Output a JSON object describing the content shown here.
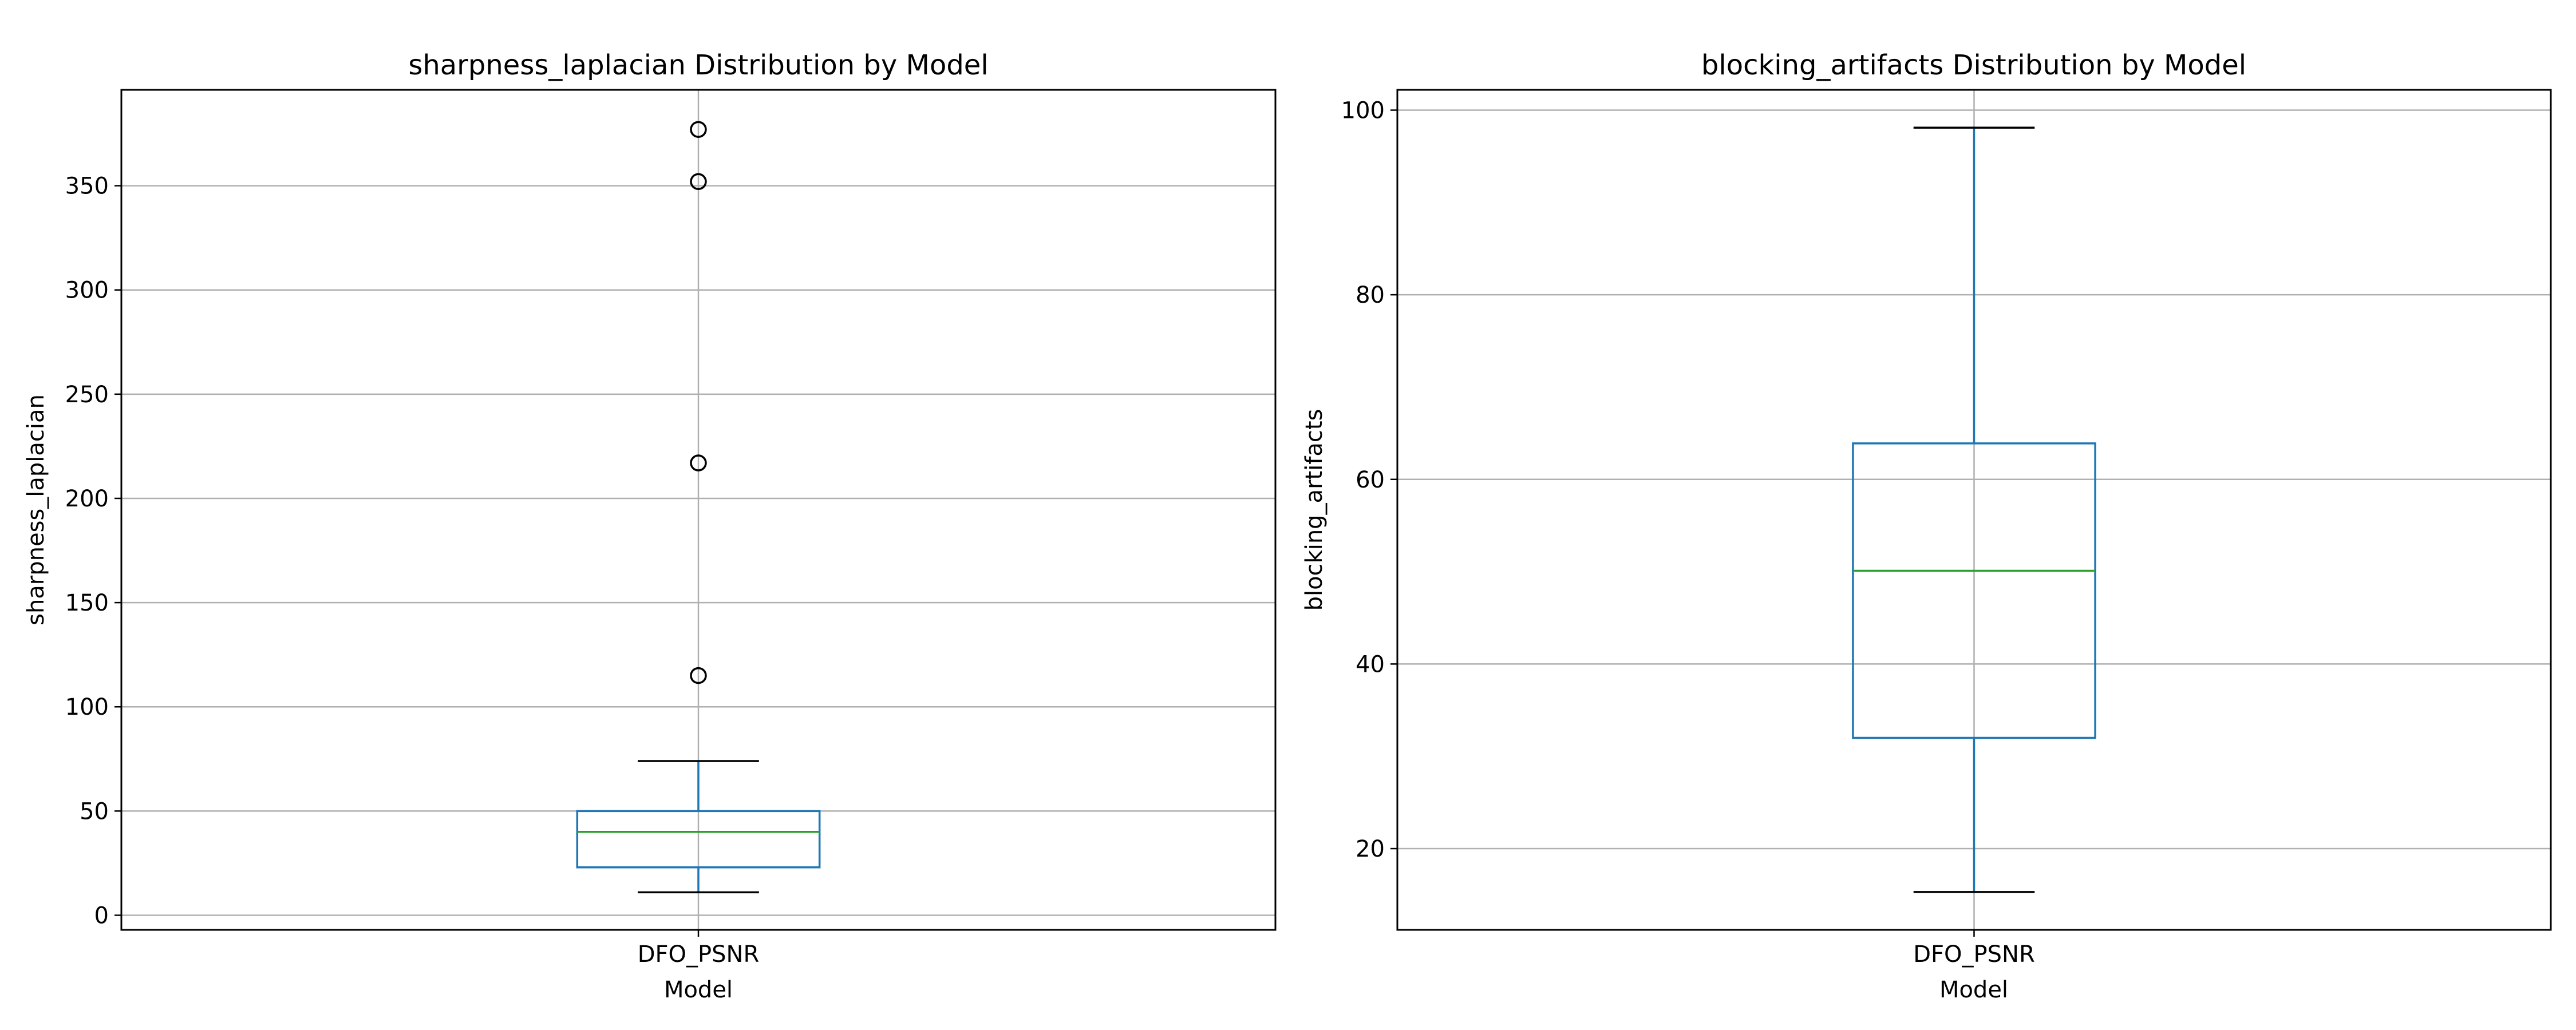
{
  "chart_data": [
    {
      "type": "box",
      "title": "sharpness_laplacian Distribution by Model",
      "xlabel": "Model",
      "ylabel": "sharpness_laplacian",
      "categories": [
        "DFO_PSNR"
      ],
      "ylim": [
        -7,
        396
      ],
      "yticks": [
        0,
        50,
        100,
        150,
        200,
        250,
        300,
        350
      ],
      "grid": true,
      "boxes": [
        {
          "category": "DFO_PSNR",
          "whisker_low": 11,
          "q1": 23,
          "median": 40,
          "q3": 50,
          "whisker_high": 74,
          "outliers": [
            115,
            217,
            352,
            377
          ]
        }
      ]
    },
    {
      "type": "box",
      "title": "blocking_artifacts Distribution by Model",
      "xlabel": "Model",
      "ylabel": "blocking_artifacts",
      "categories": [
        "DFO_PSNR"
      ],
      "ylim": [
        11.2,
        102.2
      ],
      "yticks": [
        20,
        40,
        60,
        80,
        100
      ],
      "grid": true,
      "boxes": [
        {
          "category": "DFO_PSNR",
          "whisker_low": 15.3,
          "q1": 32,
          "median": 50.1,
          "q3": 63.9,
          "whisker_high": 98.1,
          "outliers": []
        }
      ]
    }
  ],
  "colors": {
    "box": "#1f77b4",
    "median": "#2ca02c",
    "grid": "#b0b0b0",
    "axis": "#000000",
    "whisker_cap": "#000000",
    "flier": "#000000"
  }
}
